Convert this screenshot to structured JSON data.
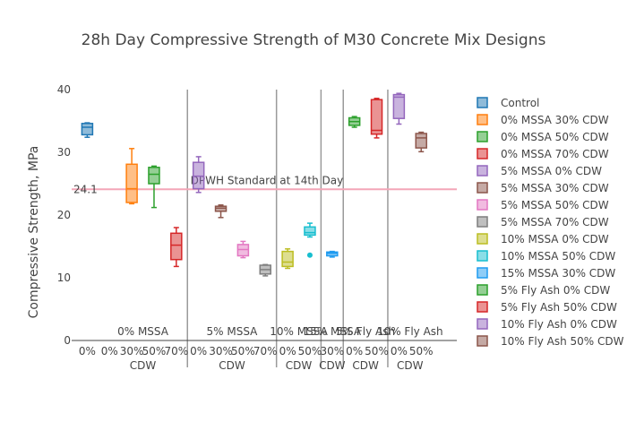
{
  "chart_data": {
    "type": "box",
    "title": "28h Day Compressive Strength of M30 Concrete Mix Designs",
    "ylabel": "Compressive Strength, MPa",
    "ylim": [
      0,
      40
    ],
    "yticks": [
      0,
      10,
      20,
      30,
      40
    ],
    "grid": false,
    "legend_position": "right",
    "reference_line": {
      "value": 24.1,
      "value_label": "24.1",
      "label": "DPWH Standard at 14th Day",
      "color": "#f4a6b8"
    },
    "groups": [
      {
        "label": "0% MSSA",
        "sub": "CDW",
        "ticks": [
          {
            "text": "0%",
            "x": 1
          },
          {
            "text": "30%",
            "x": 2
          },
          {
            "text": "50%",
            "x": 3
          },
          {
            "text": "70%",
            "x": 4
          }
        ]
      },
      {
        "label": "5% MSSA",
        "sub": "CDW",
        "ticks": [
          {
            "text": "0%",
            "x": 5
          },
          {
            "text": "30%",
            "x": 6
          },
          {
            "text": "50%",
            "x": 7
          },
          {
            "text": "70%",
            "x": 8
          }
        ]
      },
      {
        "label": "10% MSSA",
        "sub": "CDW",
        "ticks": [
          {
            "text": "0%",
            "x": 9
          },
          {
            "text": "50%",
            "x": 10
          }
        ]
      },
      {
        "label": "15% MSSA",
        "sub": "CDW",
        "ticks": [
          {
            "text": "30%",
            "x": 11
          }
        ]
      },
      {
        "label": "5% Fly Ash",
        "sub": "CDW",
        "ticks": [
          {
            "text": "0%",
            "x": 12
          },
          {
            "text": "50%",
            "x": 13
          }
        ]
      },
      {
        "label": "10% Fly Ash",
        "sub": "CDW",
        "ticks": [
          {
            "text": "0%",
            "x": 14
          },
          {
            "text": "50%",
            "x": 15
          }
        ]
      }
    ],
    "series": [
      {
        "name": "Control",
        "x": 0,
        "color": "#1f77b4",
        "min": 32.4,
        "q1": 32.8,
        "median": 34.0,
        "q3": 34.6,
        "max": 34.7
      },
      {
        "name": "0% MSSA 30% CDW",
        "x": 2,
        "color": "#ff7f0e",
        "min": 21.8,
        "q1": 22.0,
        "median": 24.2,
        "q3": 28.1,
        "max": 30.6
      },
      {
        "name": "0% MSSA 50% CDW",
        "x": 3,
        "color": "#2ca02c",
        "min": 21.2,
        "q1": 25.0,
        "median": 26.5,
        "q3": 27.6,
        "max": 27.8
      },
      {
        "name": "0% MSSA 70% CDW",
        "x": 4,
        "color": "#d62728",
        "min": 11.8,
        "q1": 12.9,
        "median": 15.2,
        "q3": 17.1,
        "max": 18.0
      },
      {
        "name": "5% MSSA 0% CDW",
        "x": 5,
        "color": "#9467bd",
        "min": 23.6,
        "q1": 24.2,
        "median": 26.2,
        "q3": 28.4,
        "max": 29.3
      },
      {
        "name": "5% MSSA 30% CDW",
        "x": 6,
        "color": "#8c564b",
        "min": 19.6,
        "q1": 20.6,
        "median": 21.1,
        "q3": 21.4,
        "max": 21.6
      },
      {
        "name": "5% MSSA 50% CDW",
        "x": 7,
        "color": "#e377c2",
        "min": 13.2,
        "q1": 13.5,
        "median": 14.5,
        "q3": 15.3,
        "max": 15.8
      },
      {
        "name": "5% MSSA 70% CDW",
        "x": 8,
        "color": "#7f7f7f",
        "min": 10.3,
        "q1": 10.6,
        "median": 11.3,
        "q3": 12.0,
        "max": 12.1
      },
      {
        "name": "10% MSSA 0% CDW",
        "x": 9,
        "color": "#bcbd22",
        "min": 11.5,
        "q1": 11.8,
        "median": 12.5,
        "q3": 14.2,
        "max": 14.6
      },
      {
        "name": "10% MSSA 50% CDW",
        "x": 10,
        "color": "#17becf",
        "min": 16.5,
        "q1": 16.8,
        "median": 17.2,
        "q3": 18.1,
        "max": 18.7,
        "outliers": [
          13.6
        ]
      },
      {
        "name": "15% MSSA 30% CDW",
        "x": 11,
        "color": "#1f9bf0",
        "min": 13.3,
        "q1": 13.5,
        "median": 13.9,
        "q3": 14.1,
        "max": 14.2
      },
      {
        "name": "5% Fly Ash 0% CDW",
        "x": 12,
        "color": "#2ca02c",
        "min": 34.0,
        "q1": 34.3,
        "median": 34.9,
        "q3": 35.5,
        "max": 35.7
      },
      {
        "name": "5% Fly Ash 50% CDW",
        "x": 13,
        "color": "#d62728",
        "min": 32.3,
        "q1": 32.9,
        "median": 33.5,
        "q3": 38.4,
        "max": 38.6
      },
      {
        "name": "10% Fly Ash 0% CDW",
        "x": 14,
        "color": "#9467bd",
        "min": 34.5,
        "q1": 35.4,
        "median": 38.8,
        "q3": 39.2,
        "max": 39.4
      },
      {
        "name": "10% Fly Ash 50% CDW",
        "x": 15,
        "color": "#8c564b",
        "min": 30.1,
        "q1": 30.7,
        "median": 32.3,
        "q3": 33.0,
        "max": 33.2
      }
    ]
  }
}
